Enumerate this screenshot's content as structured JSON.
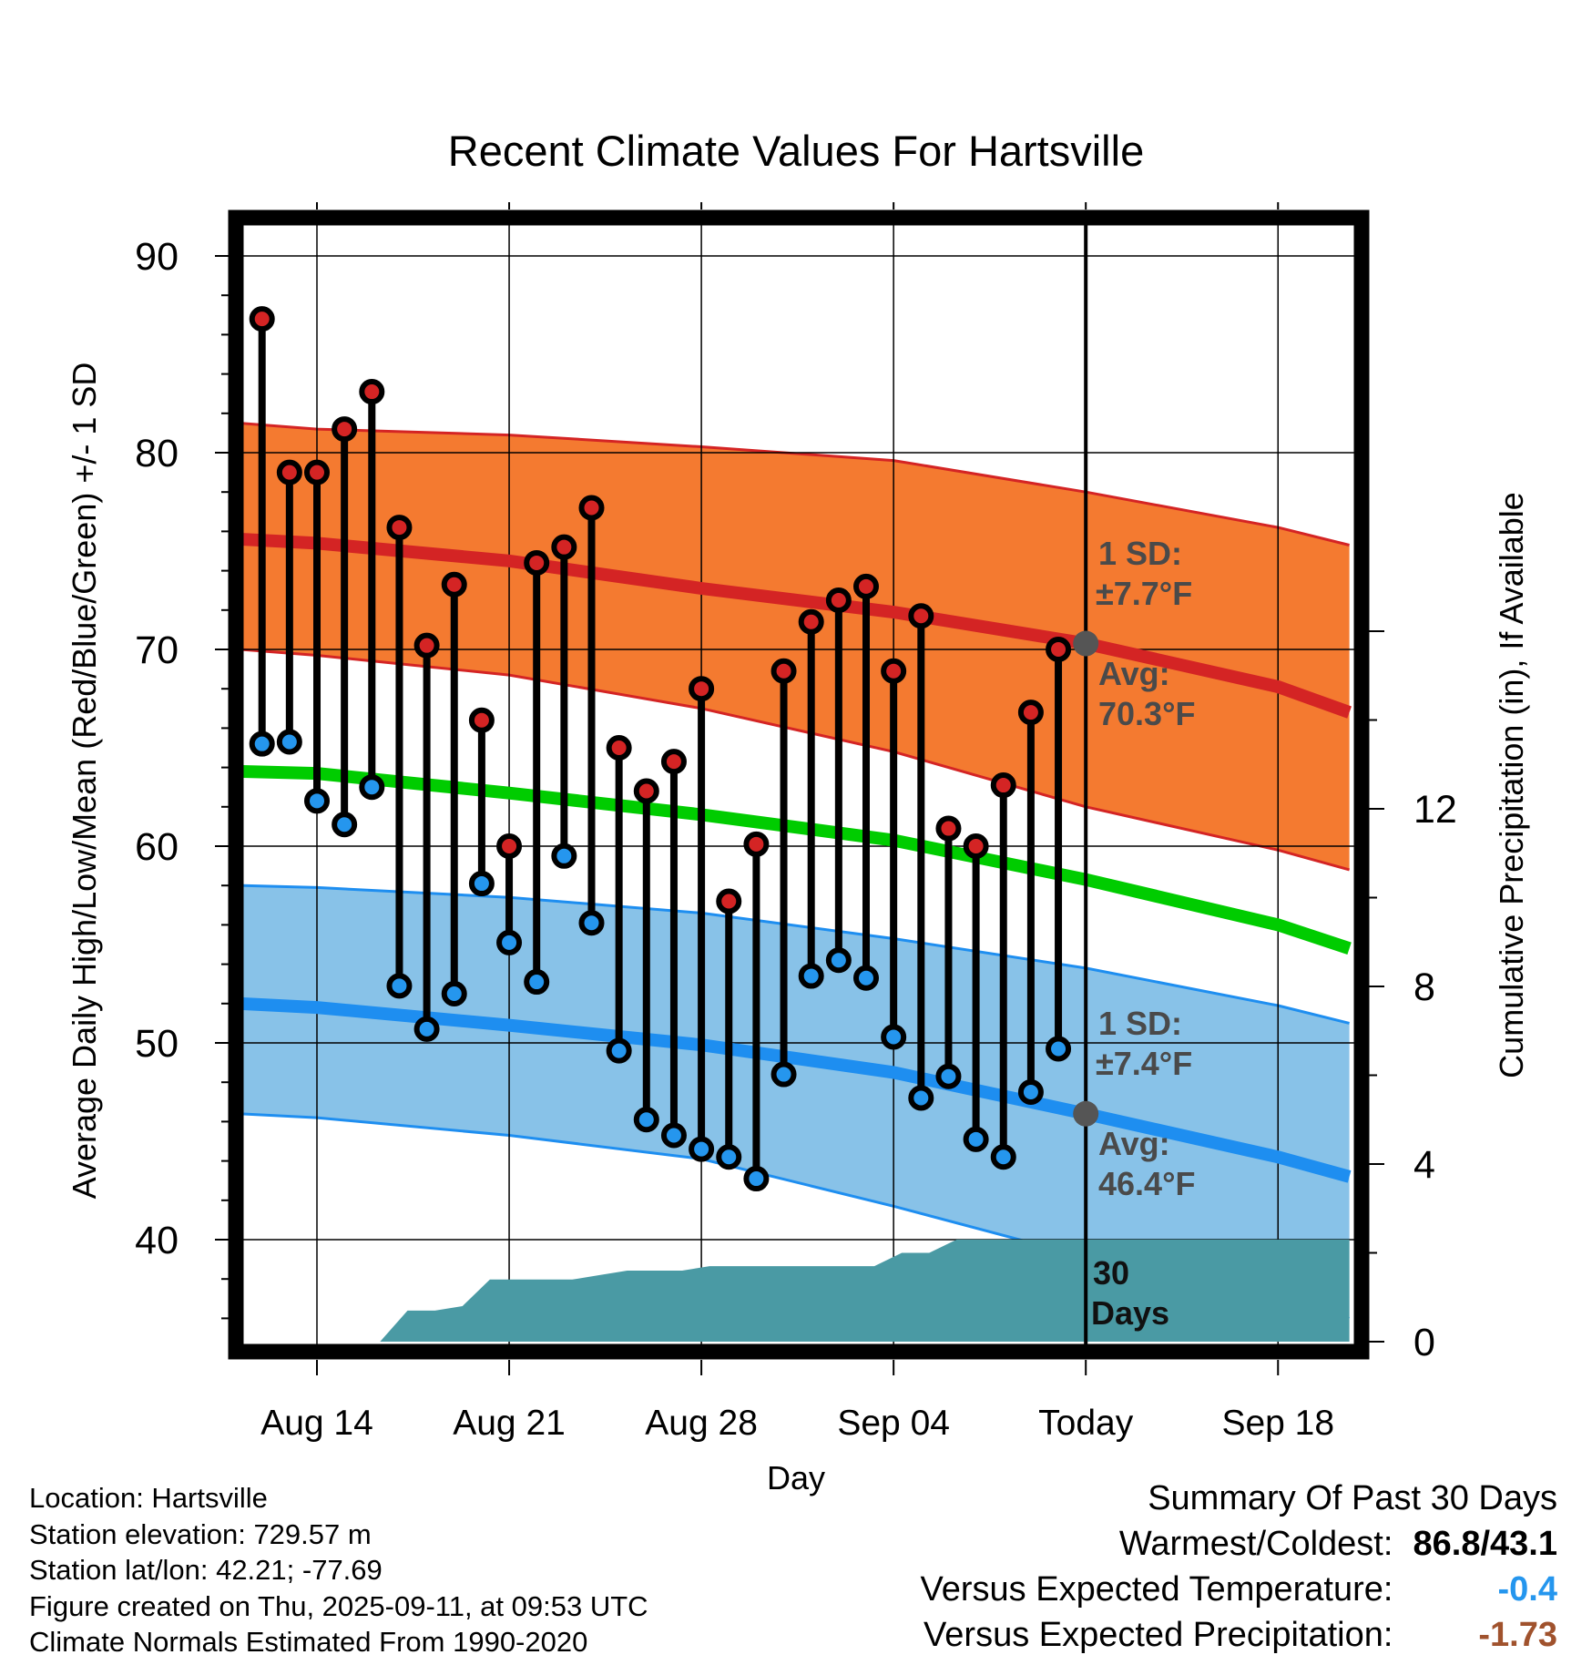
{
  "chart_data": {
    "type": "line",
    "title": "Recent Climate Values For Hartsville",
    "xlabel": "Day",
    "ylabel": "Average Daily High/Low/Mean (Red/Blue/Green) +/- 1 SD",
    "y2label": "Cumulative Precipitation (in), If Available",
    "ylim": [
      35,
      92
    ],
    "y2lim": [
      0,
      24
    ],
    "yticks": [
      "40",
      "50",
      "60",
      "70",
      "80",
      "90"
    ],
    "y2ticks": [
      "0",
      "4",
      "8",
      "12"
    ],
    "x_tick_labels": [
      "Aug 14",
      "Aug 21",
      "Aug 28",
      "Sep 04",
      "Today",
      "Sep 18"
    ],
    "x_tick_days": [
      14,
      21,
      28,
      35,
      42,
      49
    ],
    "xlim": [
      10.9,
      51.6
    ],
    "observed": {
      "days": [
        12,
        13,
        14,
        15,
        16,
        17,
        18,
        19,
        20,
        21,
        22,
        23,
        24,
        25,
        26,
        27,
        28,
        29,
        30,
        31,
        32,
        33,
        34,
        35,
        36,
        37,
        38,
        39,
        40,
        41
      ],
      "highs": [
        86.8,
        79.0,
        79.0,
        81.2,
        83.1,
        76.2,
        70.2,
        73.3,
        66.4,
        60.0,
        74.4,
        75.2,
        77.2,
        65.0,
        62.8,
        64.3,
        68.0,
        57.2,
        60.1,
        68.9,
        71.4,
        72.5,
        73.2,
        68.9,
        71.7,
        60.9,
        60.0,
        63.1,
        66.8,
        70.0
      ],
      "lows": [
        65.2,
        65.3,
        62.3,
        61.1,
        63.0,
        52.9,
        50.7,
        52.5,
        58.1,
        55.1,
        53.1,
        59.5,
        56.1,
        49.6,
        46.1,
        45.3,
        44.6,
        44.2,
        43.1,
        48.4,
        53.4,
        54.2,
        53.3,
        50.3,
        47.2,
        48.3,
        45.1,
        44.2,
        47.5,
        49.7
      ]
    },
    "normals": {
      "days": [
        11.2,
        14,
        21,
        28,
        35,
        42,
        49,
        51.6
      ],
      "avg_high": [
        75.6,
        75.4,
        74.5,
        73.1,
        71.9,
        70.3,
        68.1,
        66.8
      ],
      "avg_low": [
        52.0,
        51.8,
        50.9,
        49.9,
        48.5,
        46.4,
        44.2,
        43.2
      ],
      "avg_mean": [
        63.8,
        63.7,
        62.7,
        61.6,
        60.3,
        58.3,
        56.0,
        54.8
      ],
      "high_upper": [
        81.5,
        81.2,
        80.9,
        80.3,
        79.6,
        78.0,
        76.2,
        75.3
      ],
      "high_lower": [
        70.0,
        69.7,
        68.7,
        67.0,
        64.8,
        62.0,
        59.8,
        58.8
      ],
      "low_upper": [
        58.0,
        57.9,
        57.4,
        56.6,
        55.3,
        53.8,
        51.9,
        51.0
      ],
      "low_lower": [
        46.4,
        46.2,
        45.3,
        44.1,
        41.7,
        39.1,
        37.0,
        36.0
      ]
    },
    "precipitation_cumulative": {
      "days": [
        16.3,
        17.3,
        18.3,
        19.3,
        20.3,
        21.3,
        22.3,
        23.3,
        24.3,
        25.3,
        26.3,
        27.3,
        28.3,
        29.3,
        30.3,
        31.3,
        32.3,
        33.3,
        34.3,
        35.3,
        36.3,
        37.3,
        38.3,
        39.3,
        40.3,
        41.3,
        42.0,
        51.6
      ],
      "values": [
        0,
        0.7,
        0.7,
        0.8,
        1.4,
        1.4,
        1.4,
        1.4,
        1.5,
        1.6,
        1.6,
        1.6,
        1.7,
        1.7,
        1.7,
        1.7,
        1.7,
        1.7,
        1.7,
        2.0,
        2.0,
        2.3,
        2.3,
        2.3,
        2.3,
        2.3,
        2.3,
        2.3
      ]
    },
    "annotations": {
      "high_sd_label": "1 SD:",
      "high_sd_value": "±7.7°F",
      "high_avg_label": "Avg:",
      "high_avg_value": "70.3°F",
      "low_sd_label": "1 SD:",
      "low_sd_value": "±7.4°F",
      "low_avg_label": "Avg:",
      "low_avg_value": "46.4°F",
      "window_days": "30",
      "window_label": "Days",
      "today_high_avg": 70.3,
      "today_low_avg": 46.4
    },
    "colors": {
      "high_band": "#f47a30",
      "high_line": "#d42424",
      "low_band": "#88c2e8",
      "low_line": "#1e8ef0",
      "mean_line": "#00cc00",
      "precip_fill": "#4a9aa4",
      "high_dot": "#d42424",
      "low_dot": "#2596ee",
      "today_marker": "#555555"
    }
  },
  "footer": {
    "location": "Location: Hartsville",
    "elevation": "Station elevation: 729.57 m",
    "latlon": "Station lat/lon: 42.21; -77.69",
    "created": "Figure created on Thu, 2025-09-11, at 09:53 UTC",
    "normals": "Climate Normals Estimated From 1990-2020"
  },
  "summary": {
    "heading": "Summary Of Past 30 Days",
    "warm_cold_label": "Warmest/Coldest:",
    "warm_value": "86.8",
    "slash": "/",
    "cold_value": "43.1",
    "temp_label": "Versus Expected Temperature:",
    "temp_value": "-0.4",
    "temp_color": "#2596ee",
    "precip_label": "Versus Expected Precipitation:",
    "precip_value": "-1.73",
    "precip_color": "#a0522d"
  }
}
